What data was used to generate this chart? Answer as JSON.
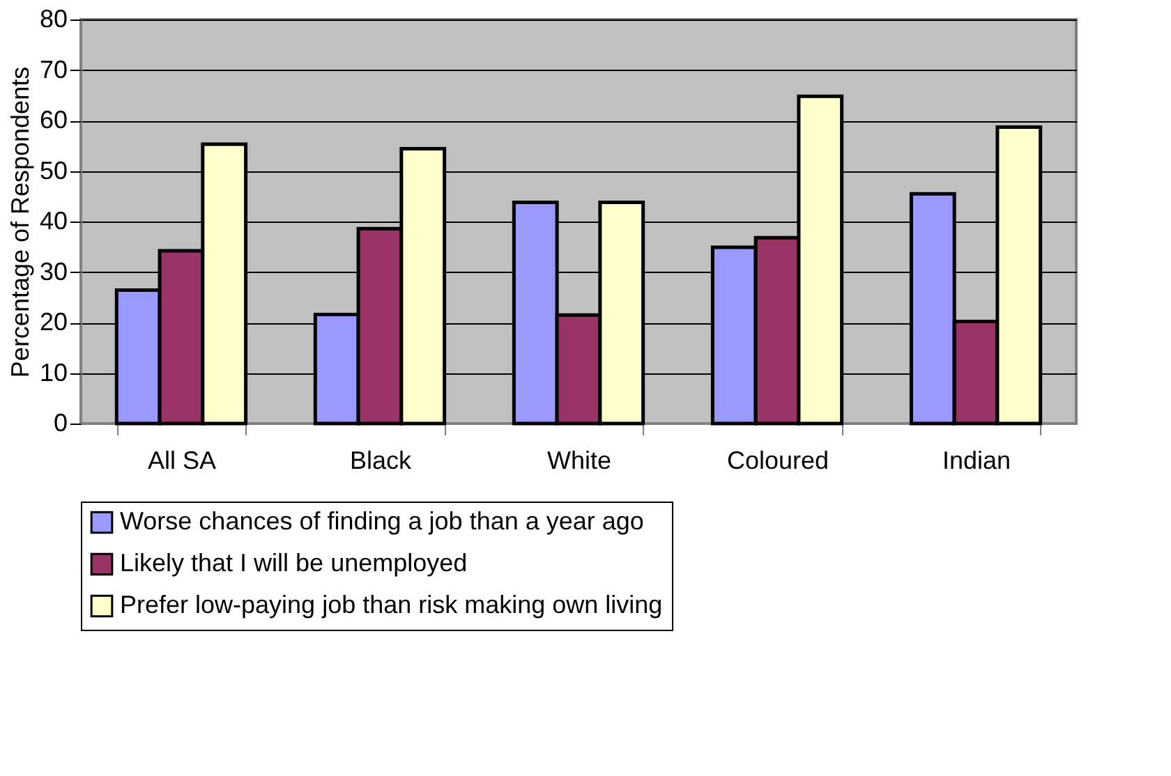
{
  "chart_data": {
    "type": "bar",
    "ylabel": "Percentage of Respondents",
    "categories": [
      "All SA",
      "Black",
      "White",
      "Coloured",
      "Indian"
    ],
    "series": [
      {
        "name": "Worse chances of finding a job than a year ago",
        "color": "#9999ff",
        "values": [
          26.4,
          21.6,
          43.8,
          34.9,
          45.5
        ]
      },
      {
        "name": "Likely that I will be unemployed",
        "color": "#993366",
        "values": [
          34.2,
          38.6,
          21.5,
          36.8,
          20.2
        ]
      },
      {
        "name": "Prefer low-paying job than risk making own living",
        "color": "#ffffcc",
        "values": [
          55.3,
          54.4,
          43.8,
          64.8,
          58.7
        ]
      }
    ],
    "ylim": [
      0,
      80
    ],
    "yticks": [
      0,
      10,
      20,
      30,
      40,
      50,
      60,
      70,
      80
    ],
    "grid": "y",
    "legend": "bottom"
  }
}
